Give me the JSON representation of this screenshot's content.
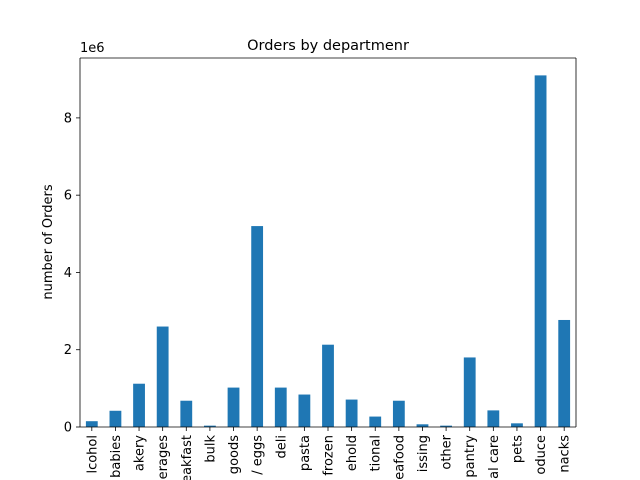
{
  "chart_data": {
    "type": "bar",
    "title": "Orders by departmenr",
    "xlabel": "",
    "ylabel": "number of Orders",
    "y_scale_label": "1e6",
    "ylim": [
      0,
      9.55
    ],
    "yticks": [
      0,
      2,
      4,
      6,
      8
    ],
    "grid": false,
    "legend": "none",
    "bar_color": "#1f77b4",
    "categories": [
      "alcohol",
      "babies",
      "bakery",
      "beverages",
      "breakfast",
      "bulk",
      "canned goods",
      "dairy eggs",
      "deli",
      "dry goods pasta",
      "frozen",
      "household",
      "international",
      "meat seafood",
      "missing",
      "other",
      "pantry",
      "personal care",
      "pets",
      "produce",
      "snacks"
    ],
    "tick_labels": [
      "lcohol",
      "babies",
      "akery",
      "erages",
      "eakfast",
      "bulk",
      "goods",
      "/ eggs",
      "deli",
      "pasta",
      "frozen",
      "ehold",
      "tional",
      "eafood",
      "issing",
      "other",
      "pantry",
      "al care",
      "pets",
      "oduce",
      "nacks"
    ],
    "values": [
      0.15,
      0.42,
      1.12,
      2.6,
      0.68,
      0.035,
      1.02,
      5.2,
      1.02,
      0.84,
      2.13,
      0.71,
      0.27,
      0.68,
      0.07,
      0.035,
      1.8,
      0.43,
      0.095,
      9.1,
      2.77
    ]
  }
}
